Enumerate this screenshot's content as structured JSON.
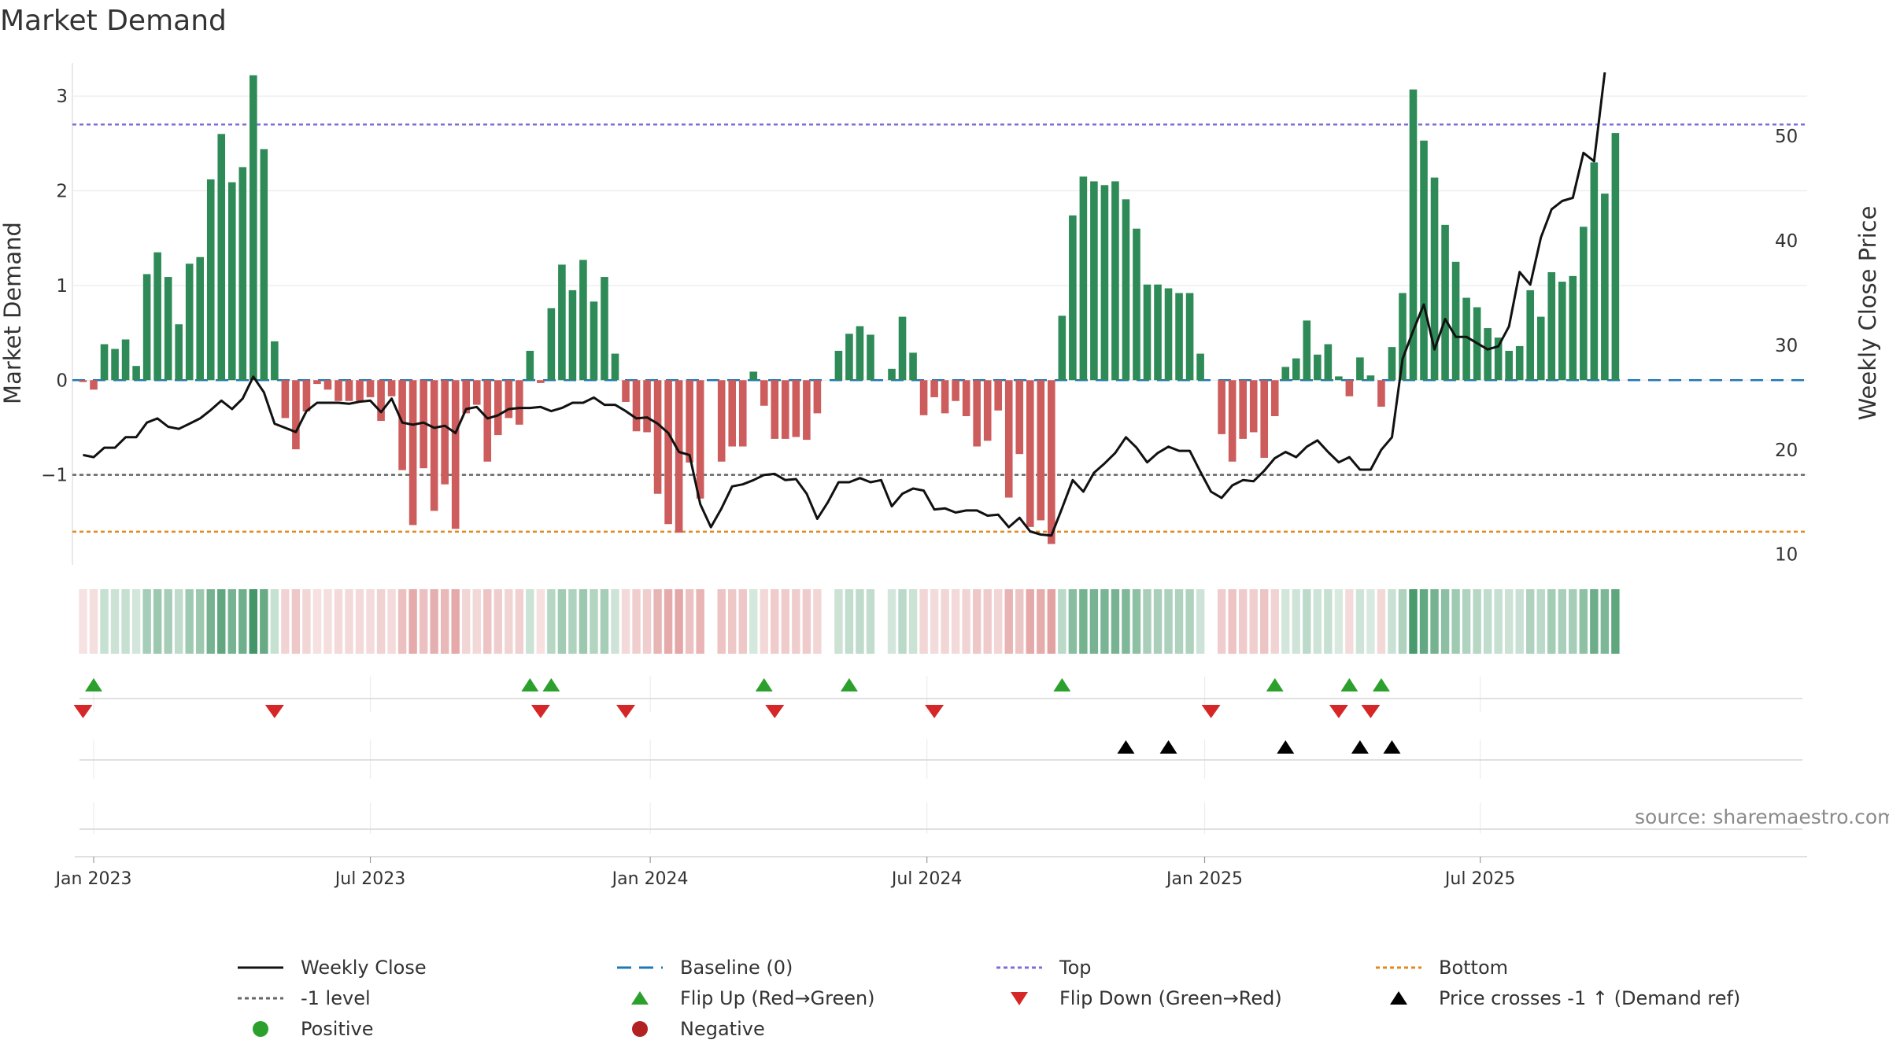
{
  "title": "Market Demand",
  "source": "source: sharemaestro.com",
  "chart_data": {
    "type": "bar",
    "title": "Market Demand",
    "ylabel": "Market Demand",
    "y2label": "Weekly Close Price",
    "ylim": [
      -1.95,
      3.35
    ],
    "y2lim": [
      9,
      57
    ],
    "yticks": [
      "3",
      "2",
      "1",
      "0",
      "−1"
    ],
    "ytick_values": [
      3,
      2,
      1,
      0,
      -1
    ],
    "y2ticks": [
      "50",
      "40",
      "30",
      "20",
      "10"
    ],
    "y2tick_values": [
      50,
      40,
      30,
      20,
      10
    ],
    "x_start_week_offset": -1,
    "xticks": [
      "Jan 2023",
      "Jul 2023",
      "Jan 2024",
      "Jul 2024",
      "Jan 2025",
      "Jul 2025"
    ],
    "xtick_week_offsets": [
      0,
      26,
      52.3,
      78.3,
      104.4,
      130.3
    ],
    "reference_lines": [
      {
        "name": "Top",
        "value": 2.7,
        "color": "#7b6fd6"
      },
      {
        "name": "-1 level",
        "value": -1.0,
        "color": "#666666"
      },
      {
        "name": "Bottom",
        "value": -1.6,
        "color": "#e08a1e"
      },
      {
        "name": "Baseline (0)",
        "value": 0,
        "color": "#1f77b4"
      }
    ],
    "series": [
      {
        "name": "Market Demand",
        "values": [
          -0.02,
          -0.1,
          0.38,
          0.33,
          0.43,
          0.15,
          1.12,
          1.35,
          1.09,
          0.59,
          1.23,
          1.3,
          2.12,
          2.6,
          2.09,
          2.25,
          3.22,
          2.44,
          0.41,
          -0.4,
          -0.73,
          -0.33,
          -0.04,
          -0.1,
          -0.22,
          -0.22,
          -0.22,
          -0.18,
          -0.43,
          -0.17,
          -0.95,
          -1.53,
          -0.93,
          -1.38,
          -1.1,
          -1.57,
          -0.35,
          -0.26,
          -0.86,
          -0.58,
          -0.4,
          -0.47,
          0.31,
          -0.03,
          0.76,
          1.22,
          0.95,
          1.27,
          0.83,
          1.09,
          0.28,
          -0.23,
          -0.54,
          -0.55,
          -1.2,
          -1.52,
          -1.61,
          -0.87,
          -1.25,
          0.0,
          -0.86,
          -0.7,
          -0.7,
          0.09,
          -0.27,
          -0.62,
          -0.62,
          -0.6,
          -0.63,
          -0.35,
          0.0,
          0.31,
          0.49,
          0.57,
          0.48,
          0.0,
          0.12,
          0.67,
          0.29,
          -0.37,
          -0.18,
          -0.35,
          -0.22,
          -0.38,
          -0.7,
          -0.64,
          -0.32,
          -1.24,
          -0.78,
          -1.55,
          -1.48,
          -1.73,
          0.68,
          1.74,
          2.15,
          2.1,
          2.06,
          2.1,
          1.91,
          1.6,
          1.01,
          1.01,
          0.97,
          0.92,
          0.92,
          0.28,
          0.0,
          -0.57,
          -0.86,
          -0.62,
          -0.55,
          -0.82,
          -0.38,
          0.14,
          0.23,
          0.63,
          0.27,
          0.38,
          0.04,
          -0.17,
          0.24,
          0.05,
          -0.28,
          0.35,
          0.92,
          3.07,
          2.53,
          2.14,
          1.64,
          1.25,
          0.87,
          0.77,
          0.55,
          0.45,
          0.31,
          0.36,
          0.95,
          0.67,
          1.14,
          1.04,
          1.1,
          1.62,
          2.3,
          1.97,
          2.61
        ]
      },
      {
        "name": "Weekly Close",
        "axis": "right",
        "values": [
          19.5,
          19.3,
          20.2,
          20.2,
          21.2,
          21.2,
          22.6,
          23.0,
          22.2,
          22.0,
          22.5,
          23.0,
          23.8,
          24.7,
          23.9,
          24.9,
          27.0,
          25.5,
          22.5,
          22.1,
          21.7,
          23.7,
          24.5,
          24.5,
          24.5,
          24.4,
          24.6,
          24.7,
          23.6,
          24.9,
          22.6,
          22.4,
          22.6,
          22.1,
          22.3,
          21.6,
          23.9,
          24.1,
          23.0,
          23.3,
          23.9,
          24.0,
          24.0,
          24.1,
          23.7,
          24.0,
          24.5,
          24.5,
          25.0,
          24.3,
          24.3,
          23.7,
          23.0,
          23.1,
          22.5,
          21.6,
          19.8,
          19.5,
          14.8,
          12.6,
          14.4,
          16.5,
          16.7,
          17.1,
          17.6,
          17.7,
          17.1,
          17.2,
          15.8,
          13.4,
          15.0,
          16.9,
          16.9,
          17.3,
          16.9,
          17.1,
          14.6,
          15.8,
          16.3,
          16.1,
          14.3,
          14.4,
          14.0,
          14.2,
          14.2,
          13.7,
          13.8,
          12.6,
          13.5,
          12.2,
          11.9,
          11.8,
          14.4,
          17.1,
          16.0,
          17.8,
          18.7,
          19.7,
          21.2,
          20.2,
          18.8,
          19.7,
          20.3,
          19.9,
          19.9,
          17.9,
          16.0,
          15.4,
          16.6,
          17.1,
          17.0,
          18.0,
          19.2,
          19.8,
          19.3,
          20.3,
          20.9,
          19.8,
          18.8,
          19.3,
          18.1,
          18.1,
          20.0,
          21.2,
          28.7,
          31.4,
          33.9,
          29.6,
          32.5,
          30.8,
          30.8,
          30.2,
          29.6,
          29.9,
          31.8,
          37.0,
          35.8,
          40.3,
          43.0,
          43.8,
          44.1,
          48.4,
          47.6,
          56.1
        ]
      }
    ],
    "flip_up_weeks": [
      1,
      42,
      44,
      64,
      72,
      92,
      112,
      119,
      122
    ],
    "flip_down_weeks": [
      0,
      18,
      43,
      51,
      65,
      80,
      106,
      118,
      121
    ],
    "price_cross_weeks": [
      98,
      102,
      113,
      120,
      123
    ],
    "legend_position": "bottom"
  },
  "legend": {
    "row1": [
      "Weekly Close",
      "Baseline (0)",
      "Top",
      "Bottom"
    ],
    "row2": [
      "-1 level",
      "Flip Up (Red→Green)",
      "Flip Down (Green→Red)",
      "Price crosses -1 ↑ (Demand ref)"
    ],
    "row3": [
      "Positive",
      "Negative"
    ]
  },
  "colors": {
    "positive": "#2e8b57",
    "negative": "#cd5c5c",
    "price": "#111111",
    "flip_up": "#2ca02c",
    "flip_down": "#d62728",
    "cross": "#000000",
    "legend_positive": "#2ca02c",
    "legend_negative": "#b22222"
  }
}
